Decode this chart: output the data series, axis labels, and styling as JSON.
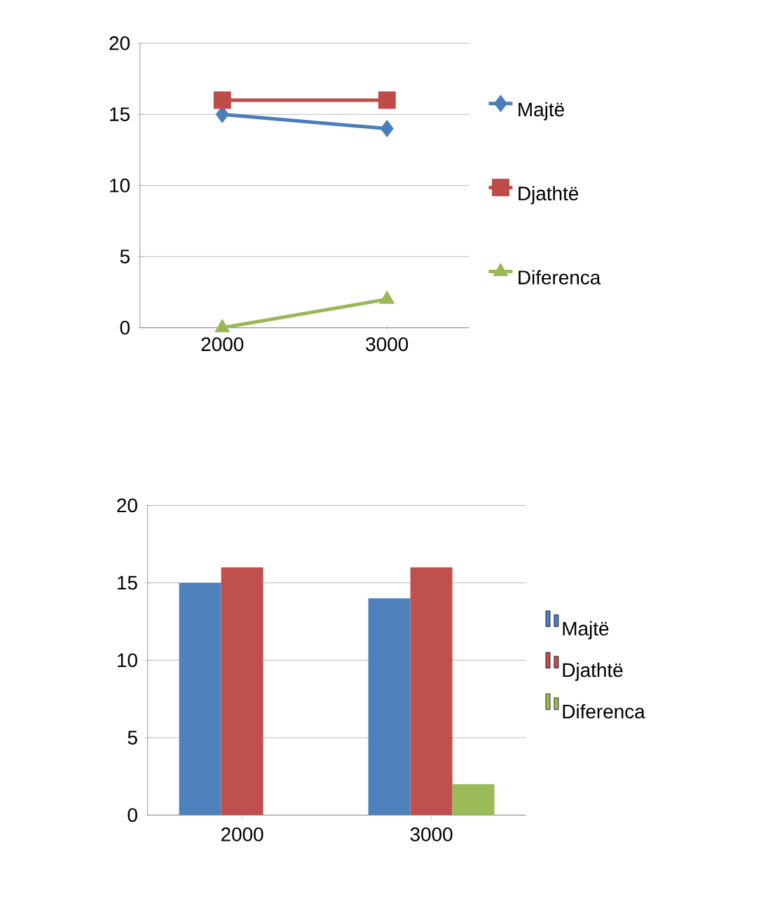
{
  "chart_data": [
    {
      "type": "line",
      "categories": [
        "2000",
        "3000"
      ],
      "ylim": [
        0,
        20
      ],
      "yticks": [
        0,
        5,
        10,
        15,
        20
      ],
      "grid": "y",
      "legend": "right",
      "series": [
        {
          "name": "Majtë",
          "color": "#4a7ebb",
          "marker": "diamond",
          "values": [
            15,
            14
          ]
        },
        {
          "name": "Djathtë",
          "color": "#be4b48",
          "marker": "square",
          "values": [
            16,
            16
          ]
        },
        {
          "name": "Diferenca",
          "color": "#98b954",
          "marker": "triangle",
          "values": [
            0,
            2
          ]
        }
      ]
    },
    {
      "type": "bar",
      "categories": [
        "2000",
        "3000"
      ],
      "ylim": [
        0,
        20
      ],
      "yticks": [
        0,
        5,
        10,
        15,
        20
      ],
      "grid": "y",
      "legend": "right",
      "series": [
        {
          "name": "Majtë",
          "color": "#4f81bd",
          "values": [
            15,
            14
          ]
        },
        {
          "name": "Djathtë",
          "color": "#c0504d",
          "values": [
            16,
            16
          ]
        },
        {
          "name": "Diferenca",
          "color": "#9bbb59",
          "values": [
            0,
            2
          ]
        }
      ]
    }
  ]
}
